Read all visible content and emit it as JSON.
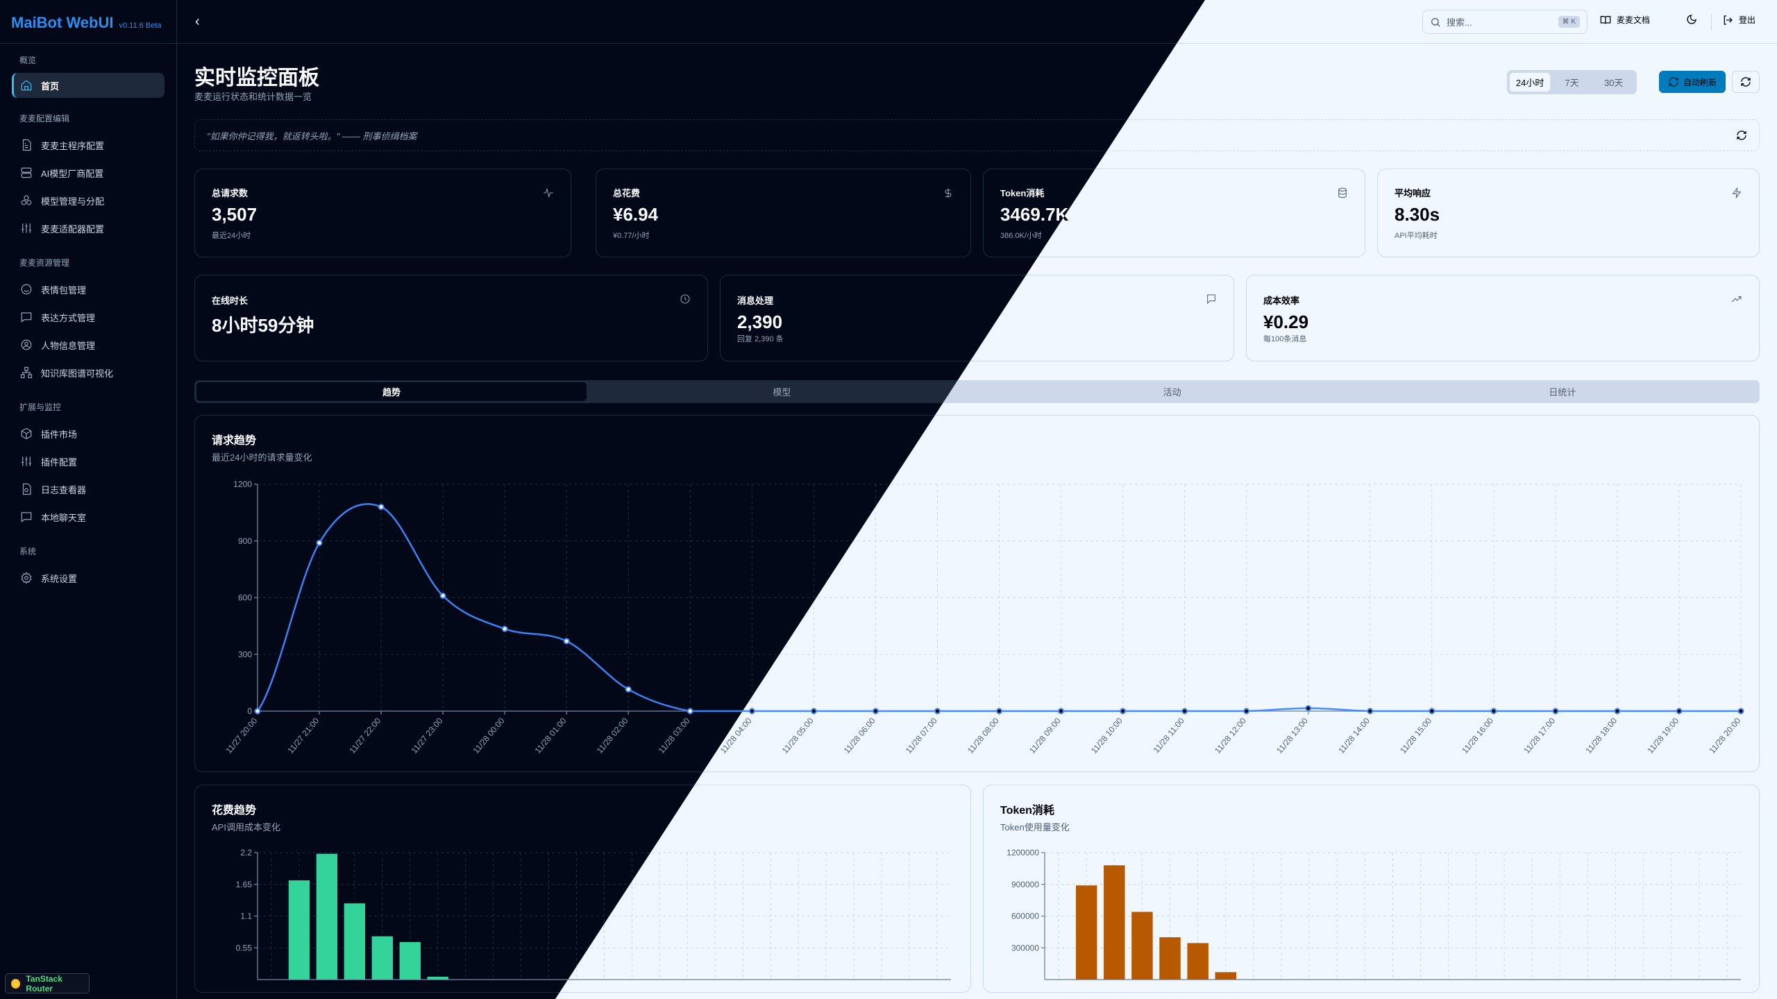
{
  "app": {
    "name": "MaiBot WebUI",
    "version": "v0.11.6 Beta"
  },
  "sidebar": {
    "sections": [
      {
        "label": "概览",
        "items": [
          {
            "label": "首页",
            "icon": "home-icon",
            "active": true
          }
        ]
      },
      {
        "label": "麦麦配置编辑",
        "items": [
          {
            "label": "麦麦主程序配置",
            "icon": "file-text-icon"
          },
          {
            "label": "AI模型厂商配置",
            "icon": "server-icon"
          },
          {
            "label": "模型管理与分配",
            "icon": "boxes-icon"
          },
          {
            "label": "麦麦适配器配置",
            "icon": "sliders-icon"
          }
        ]
      },
      {
        "label": "麦麦资源管理",
        "items": [
          {
            "label": "表情包管理",
            "icon": "smile-icon"
          },
          {
            "label": "表达方式管理",
            "icon": "message-square-icon"
          },
          {
            "label": "人物信息管理",
            "icon": "user-circle-icon"
          },
          {
            "label": "知识库图谱可视化",
            "icon": "network-icon"
          }
        ]
      },
      {
        "label": "扩展与监控",
        "items": [
          {
            "label": "插件市场",
            "icon": "package-icon"
          },
          {
            "label": "插件配置",
            "icon": "sliders-icon"
          },
          {
            "label": "日志查看器",
            "icon": "file-search-icon"
          },
          {
            "label": "本地聊天室",
            "icon": "message-square-icon"
          }
        ]
      },
      {
        "label": "系统",
        "items": [
          {
            "label": "系统设置",
            "icon": "gear-icon"
          }
        ]
      }
    ],
    "devtools_badge": "TanStack Router"
  },
  "header": {
    "search_placeholder": "搜索...",
    "search_shortcut": "⌘ K",
    "docs_label": "麦麦文档",
    "logout_label": "登出"
  },
  "page": {
    "title": "实时监控面板",
    "subtitle": "麦麦运行状态和统计数据一览",
    "time_ranges": [
      "24小时",
      "7天",
      "30天"
    ],
    "selected_range": "24小时",
    "auto_refresh_label": "自动刷新",
    "quote": "\"如果你仲记得我，就返转头啦。\" —— 刑事侦缉档案"
  },
  "stats_row1": [
    {
      "label": "总请求数",
      "value": "3,507",
      "sub": "最近24小时",
      "icon": "activity-icon"
    },
    {
      "label": "总花费",
      "value": "¥6.94",
      "sub": "¥0.77/小时",
      "icon": "dollar-icon"
    },
    {
      "label": "Token消耗",
      "value": "3469.7K",
      "sub": "386.0K/小时",
      "icon": "database-icon"
    },
    {
      "label": "平均响应",
      "value": "8.30s",
      "sub": "API平均耗时",
      "icon": "zap-icon"
    }
  ],
  "stats_row2": [
    {
      "label": "在线时长",
      "value": "8小时59分钟",
      "sub": "",
      "icon": "clock-icon"
    },
    {
      "label": "消息处理",
      "value": "2,390",
      "sub": "回复 2,390 条",
      "icon": "message-icon"
    },
    {
      "label": "成本效率",
      "value": "¥0.29",
      "sub": "每100条消息",
      "icon": "trending-up-icon"
    }
  ],
  "tabs": [
    {
      "label": "趋势",
      "active": true
    },
    {
      "label": "模型"
    },
    {
      "label": "活动"
    },
    {
      "label": "日统计"
    }
  ],
  "chart_data": [
    {
      "type": "line",
      "title": "请求趋势",
      "subtitle": "最近24小时的请求量变化",
      "x": [
        "11/27 20:00",
        "11/27 21:00",
        "11/27 22:00",
        "11/27 23:00",
        "11/28 00:00",
        "11/28 01:00",
        "11/28 02:00",
        "11/28 03:00",
        "11/28 04:00",
        "11/28 05:00",
        "11/28 06:00",
        "11/28 07:00",
        "11/28 08:00",
        "11/28 09:00",
        "11/28 10:00",
        "11/28 11:00",
        "11/28 12:00",
        "11/28 13:00",
        "11/28 14:00",
        "11/28 15:00",
        "11/28 16:00",
        "11/28 17:00",
        "11/28 18:00",
        "11/28 19:00",
        "11/28 20:00"
      ],
      "values": [
        0,
        890,
        1080,
        610,
        435,
        370,
        115,
        0,
        0,
        0,
        0,
        0,
        0,
        0,
        0,
        0,
        0,
        15,
        0,
        0,
        0,
        0,
        0,
        0,
        0
      ],
      "ylim": [
        0,
        1200
      ],
      "yticks": [
        0,
        300,
        600,
        900,
        1200
      ],
      "color": "#3b82f6",
      "grid": true
    },
    {
      "type": "bar",
      "title": "花费趋势",
      "subtitle": "API调用成本变化",
      "x_count_same_as_requests": true,
      "values": [
        0,
        1.72,
        2.18,
        1.32,
        0.75,
        0.65,
        0.05,
        0,
        0,
        0,
        0,
        0,
        0,
        0,
        0,
        0,
        0,
        0,
        0,
        0,
        0,
        0,
        0,
        0,
        0
      ],
      "ylim": [
        0,
        2.2
      ],
      "yticks": [
        "0.55",
        "1.1",
        "1.65",
        "2.2"
      ],
      "color": "#34d399",
      "grid": true
    },
    {
      "type": "bar",
      "title": "Token消耗",
      "subtitle": "Token使用量变化",
      "values": [
        0,
        890000,
        1080000,
        640000,
        400000,
        345000,
        70000,
        0,
        0,
        0,
        0,
        0,
        0,
        0,
        0,
        0,
        0,
        0,
        0,
        0,
        0,
        0,
        0,
        0,
        0
      ],
      "ylim": [
        0,
        1200000
      ],
      "yticks": [
        "300000",
        "600000",
        "900000",
        "1200000"
      ],
      "color": "#e88b30",
      "grid": true
    }
  ]
}
